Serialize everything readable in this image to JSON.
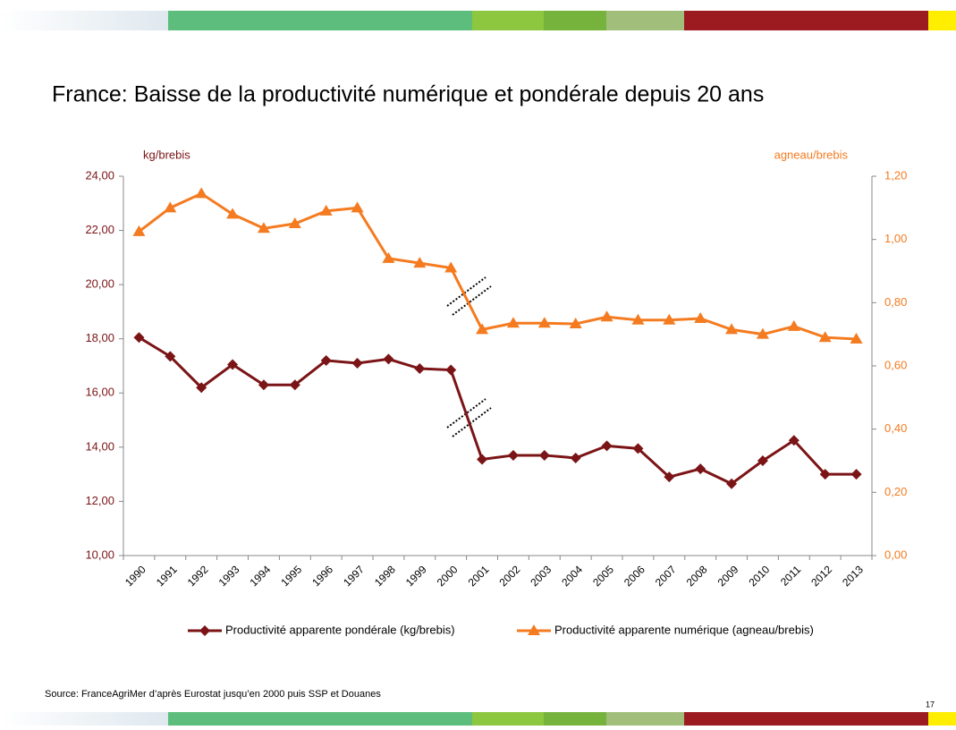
{
  "chart_data": {
    "type": "line",
    "title": "France: Baisse de la productivité numérique et pondérale depuis 20 ans",
    "y_label": "kg/brebis",
    "y2_label": "agneau/brebis",
    "categories": [
      "1990",
      "1991",
      "1992",
      "1993",
      "1994",
      "1995",
      "1996",
      "1997",
      "1998",
      "1999",
      "2000",
      "2001",
      "2002",
      "2003",
      "2004",
      "2005",
      "2006",
      "2007",
      "2008",
      "2009",
      "2010",
      "2011",
      "2012",
      "2013"
    ],
    "series": [
      {
        "name": "Productivité apparente pondérale (kg/brebis)",
        "color": "#7b1416",
        "marker": "diamond",
        "values": [
          18.05,
          17.35,
          16.2,
          17.05,
          16.3,
          16.3,
          17.2,
          17.1,
          17.25,
          16.9,
          16.85,
          13.55,
          13.7,
          13.7,
          13.6,
          14.05,
          13.95,
          12.9,
          13.2,
          12.65,
          13.5,
          14.25,
          13.0,
          13.0
        ]
      },
      {
        "name": "Productivité apparente numérique (agneau/brebis)",
        "color": "#f47b20",
        "marker": "triangle",
        "axis": "y2",
        "values": [
          1.025,
          1.1,
          1.145,
          1.08,
          1.035,
          1.05,
          1.09,
          1.1,
          0.94,
          0.925,
          0.91,
          0.715,
          0.735,
          0.735,
          0.733,
          0.755,
          0.745,
          0.745,
          0.75,
          0.715,
          0.7,
          0.725,
          0.69,
          0.685
        ]
      }
    ],
    "ylim": [
      10,
      24
    ],
    "yticks": [
      {
        "value": 10,
        "label": "10,00"
      },
      {
        "value": 12,
        "label": "12,00"
      },
      {
        "value": 14,
        "label": "14,00"
      },
      {
        "value": 16,
        "label": "16,00"
      },
      {
        "value": 18,
        "label": "18,00"
      },
      {
        "value": 20,
        "label": "20,00"
      },
      {
        "value": 22,
        "label": "22,00"
      },
      {
        "value": 24,
        "label": "24,00"
      }
    ],
    "y2lim": [
      0,
      1.2
    ],
    "y2ticks": [
      {
        "value": 0,
        "label": "0,00"
      },
      {
        "value": 0.2,
        "label": "0,20"
      },
      {
        "value": 0.4,
        "label": "0,40"
      },
      {
        "value": 0.6,
        "label": "0,60"
      },
      {
        "value": 0.8,
        "label": "0,80"
      },
      {
        "value": 1.0,
        "label": "1,00"
      },
      {
        "value": 1.2,
        "label": "1,20"
      }
    ],
    "legend": "bottom",
    "source": "Source: FranceAgriMer d’après Eurostat jusqu’en 2000 puis SSP et Douanes"
  },
  "page_number": "17"
}
